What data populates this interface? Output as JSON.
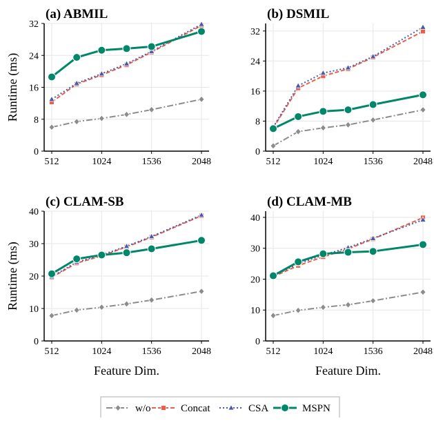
{
  "figure": {
    "xlabel": "Feature Dim.",
    "ylabel": "Runtime (ms)",
    "legend_position": "bottom-center"
  },
  "series_styles": [
    {
      "name": "w/o",
      "color": "#8c8c8c",
      "marker": "diamond",
      "dash": "dashdot"
    },
    {
      "name": "Concat",
      "color": "#e8604c",
      "marker": "square",
      "dash": "dashed"
    },
    {
      "name": "CSA",
      "color": "#4a5aa8",
      "marker": "triangle",
      "dash": "dotted"
    },
    {
      "name": "MSPN",
      "color": "#00876a",
      "marker": "circle",
      "dash": "solid"
    }
  ],
  "chart_data": [
    {
      "type": "line",
      "title": "(a) ABMIL",
      "xlabel": "",
      "ylabel": "Runtime (ms)",
      "x": [
        512,
        768,
        1024,
        1280,
        1536,
        2048
      ],
      "xticks": [
        512,
        1024,
        1536,
        2048
      ],
      "ylim": [
        0,
        32
      ],
      "yticks": [
        0,
        8,
        16,
        24,
        32
      ],
      "grid": true,
      "series": [
        {
          "name": "w/o",
          "values": [
            6.0,
            7.4,
            8.2,
            9.2,
            10.4,
            13.0
          ]
        },
        {
          "name": "Concat",
          "values": [
            12.3,
            16.8,
            19.1,
            21.6,
            24.8,
            31.5
          ]
        },
        {
          "name": "CSA",
          "values": [
            13.0,
            17.0,
            19.4,
            21.9,
            25.0,
            31.8
          ]
        },
        {
          "name": "MSPN",
          "values": [
            18.6,
            23.5,
            25.3,
            25.7,
            26.2,
            30.0
          ]
        }
      ]
    },
    {
      "type": "line",
      "title": "(b) DSMIL",
      "xlabel": "",
      "ylabel": "",
      "x": [
        512,
        768,
        1024,
        1280,
        1536,
        2048
      ],
      "xticks": [
        512,
        1024,
        1536,
        2048
      ],
      "ylim": [
        0,
        34
      ],
      "yticks": [
        0,
        8,
        16,
        24,
        32
      ],
      "grid": true,
      "series": [
        {
          "name": "w/o",
          "values": [
            1.4,
            5.2,
            6.2,
            7.0,
            8.3,
            11.0
          ]
        },
        {
          "name": "Concat",
          "values": [
            6.2,
            16.8,
            20.0,
            21.9,
            25.0,
            31.9
          ]
        },
        {
          "name": "CSA",
          "values": [
            6.4,
            17.4,
            20.8,
            22.2,
            25.2,
            33.0
          ]
        },
        {
          "name": "MSPN",
          "values": [
            6.0,
            9.2,
            10.6,
            11.0,
            12.4,
            15.0
          ]
        }
      ]
    },
    {
      "type": "line",
      "title": "(c) CLAM-SB",
      "xlabel": "Feature Dim.",
      "ylabel": "Runtime (ms)",
      "x": [
        512,
        768,
        1024,
        1280,
        1536,
        2048
      ],
      "xticks": [
        512,
        1024,
        1536,
        2048
      ],
      "ylim": [
        0,
        40
      ],
      "yticks": [
        0,
        10,
        20,
        30,
        40
      ],
      "grid": true,
      "series": [
        {
          "name": "w/o",
          "values": [
            7.8,
            9.5,
            10.4,
            11.4,
            12.6,
            15.3
          ]
        },
        {
          "name": "Concat",
          "values": [
            19.6,
            24.0,
            26.2,
            29.0,
            32.0,
            38.6
          ]
        },
        {
          "name": "CSA",
          "values": [
            19.8,
            24.3,
            26.5,
            29.2,
            32.2,
            38.8
          ]
        },
        {
          "name": "MSPN",
          "values": [
            20.7,
            25.3,
            26.5,
            27.2,
            28.4,
            31.0
          ]
        }
      ]
    },
    {
      "type": "line",
      "title": "(d) CLAM-MB",
      "xlabel": "Feature Dim.",
      "ylabel": "",
      "x": [
        512,
        768,
        1024,
        1280,
        1536,
        2048
      ],
      "xticks": [
        512,
        1024,
        1536,
        2048
      ],
      "ylim": [
        0,
        42
      ],
      "yticks": [
        0,
        10,
        20,
        30,
        40
      ],
      "grid": true,
      "series": [
        {
          "name": "w/o",
          "values": [
            8.2,
            9.9,
            10.9,
            11.7,
            13.0,
            15.8
          ]
        },
        {
          "name": "Concat",
          "values": [
            20.8,
            24.4,
            27.2,
            29.8,
            33.0,
            39.9
          ]
        },
        {
          "name": "CSA",
          "values": [
            21.0,
            25.0,
            27.8,
            30.2,
            33.2,
            39.2
          ]
        },
        {
          "name": "MSPN",
          "values": [
            21.1,
            25.6,
            28.2,
            28.7,
            29.0,
            31.2
          ]
        }
      ]
    }
  ]
}
